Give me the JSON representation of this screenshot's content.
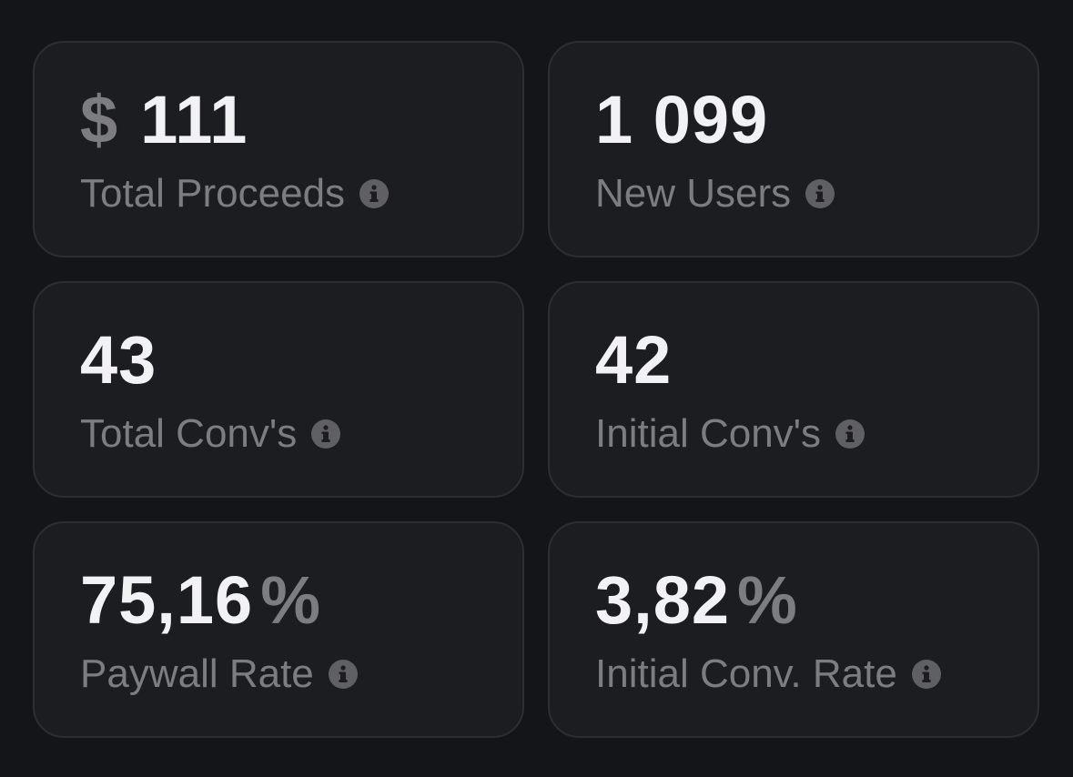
{
  "cards": [
    {
      "prefix": "$",
      "value": "111",
      "label": "Total Proceeds"
    },
    {
      "value": "1 099",
      "label": "New Users"
    },
    {
      "value": "43",
      "label": "Total Conv's"
    },
    {
      "value": "42",
      "label": "Initial Conv's"
    },
    {
      "value": "75,16",
      "suffix": "%",
      "label": "Paywall Rate"
    },
    {
      "value": "3,82",
      "suffix": "%",
      "label": "Initial Conv. Rate"
    }
  ]
}
